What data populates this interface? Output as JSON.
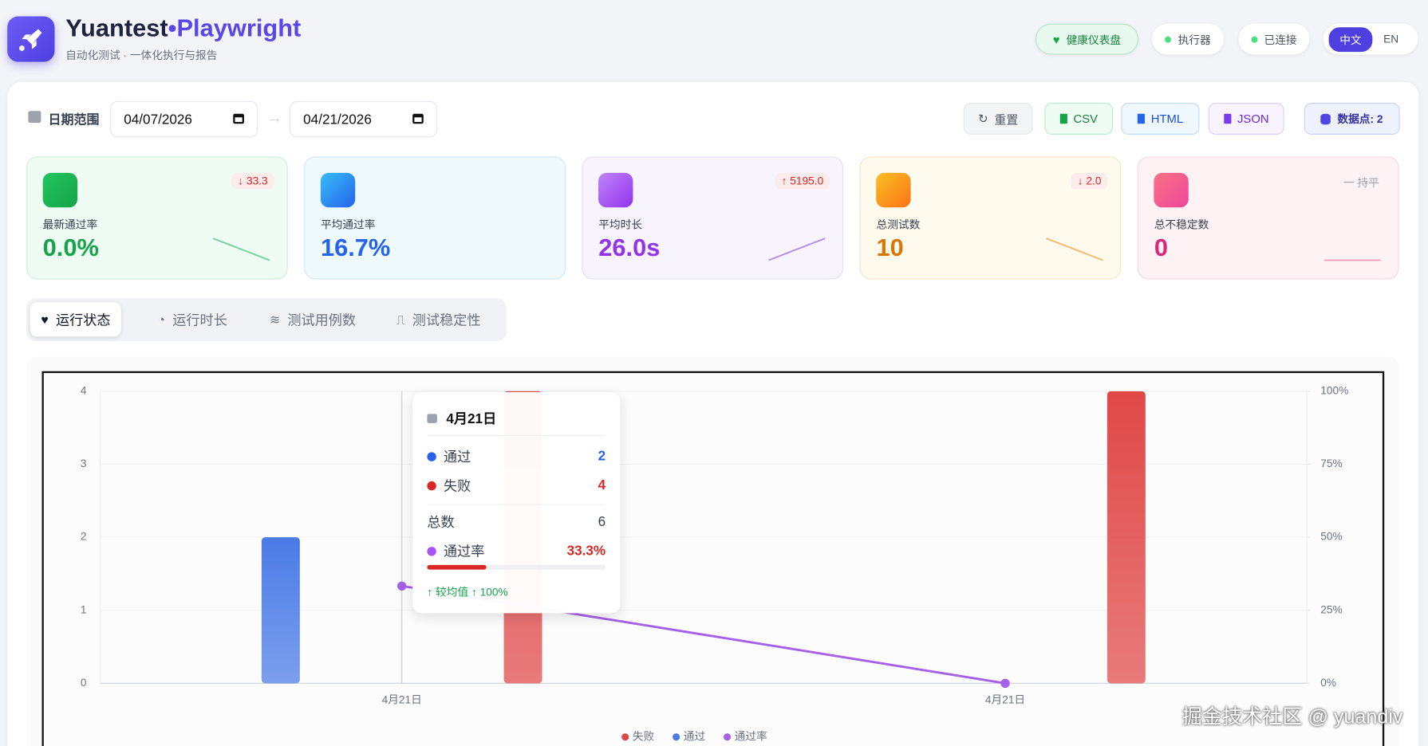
{
  "header": {
    "brand": "Yuantest",
    "brand_accent": "•Playwright",
    "subtitle": "自动化测试 · 一体化执行与报告",
    "status": [
      "健康仪表盘",
      "执行器",
      "已连接"
    ],
    "languages": [
      "中文",
      "EN"
    ]
  },
  "toolbar": {
    "date_label": "日期范围",
    "start_date": "04/07/2026",
    "end_date": "04/21/2026",
    "buttons": [
      "重置",
      "CSV",
      "HTML",
      "JSON"
    ],
    "data_points": "数据点: 2"
  },
  "kpis": [
    {
      "label": "最新通过率",
      "value": "0.0%",
      "delta": "↓ 33.3"
    },
    {
      "label": "平均通过率",
      "value": "16.7%"
    },
    {
      "label": "平均时长",
      "value": "26.0s",
      "delta": "↑ 5195.0"
    },
    {
      "label": "总测试数",
      "value": "10",
      "delta": "↓ 2.0"
    },
    {
      "label": "总不稳定数",
      "value": "0",
      "delta": "一 持平"
    }
  ],
  "tabs": [
    "运行状态",
    "运行时长",
    "测试用例数",
    "测试稳定性"
  ],
  "chart_data": {
    "type": "bar",
    "categories": [
      "4月21日",
      "4月21日"
    ],
    "series": [
      {
        "name": "失败",
        "color": "#e04848",
        "values": [
          4,
          4
        ]
      },
      {
        "name": "通过",
        "color": "#4a7be6",
        "values": [
          2,
          0
        ]
      },
      {
        "name": "通过率",
        "type": "line",
        "color": "#a660e8",
        "axis": "y2",
        "values": [
          33.3,
          0
        ]
      }
    ],
    "ylim": [
      0,
      4
    ],
    "yticks": [
      0,
      1,
      2,
      3,
      4
    ],
    "y2lim": [
      0,
      100
    ],
    "y2ticks": [
      {
        "value": 0,
        "label": "0%"
      },
      {
        "value": 25,
        "label": "25%"
      },
      {
        "value": 50,
        "label": "50%"
      },
      {
        "value": 75,
        "label": "75%"
      },
      {
        "value": 100,
        "label": "100%"
      }
    ],
    "grid": true,
    "legend": "bottom"
  },
  "tooltip": {
    "title": "4月21日",
    "rows": [
      {
        "label": "通过",
        "value": "2"
      },
      {
        "label": "失败",
        "value": "4"
      },
      {
        "label": "总数",
        "value": "6"
      },
      {
        "label": "通过率",
        "value": "33.3%"
      }
    ],
    "note": "↑ 较均值 ↑ 100%"
  },
  "watermark": "掘金技术社区 @ yuandiv"
}
